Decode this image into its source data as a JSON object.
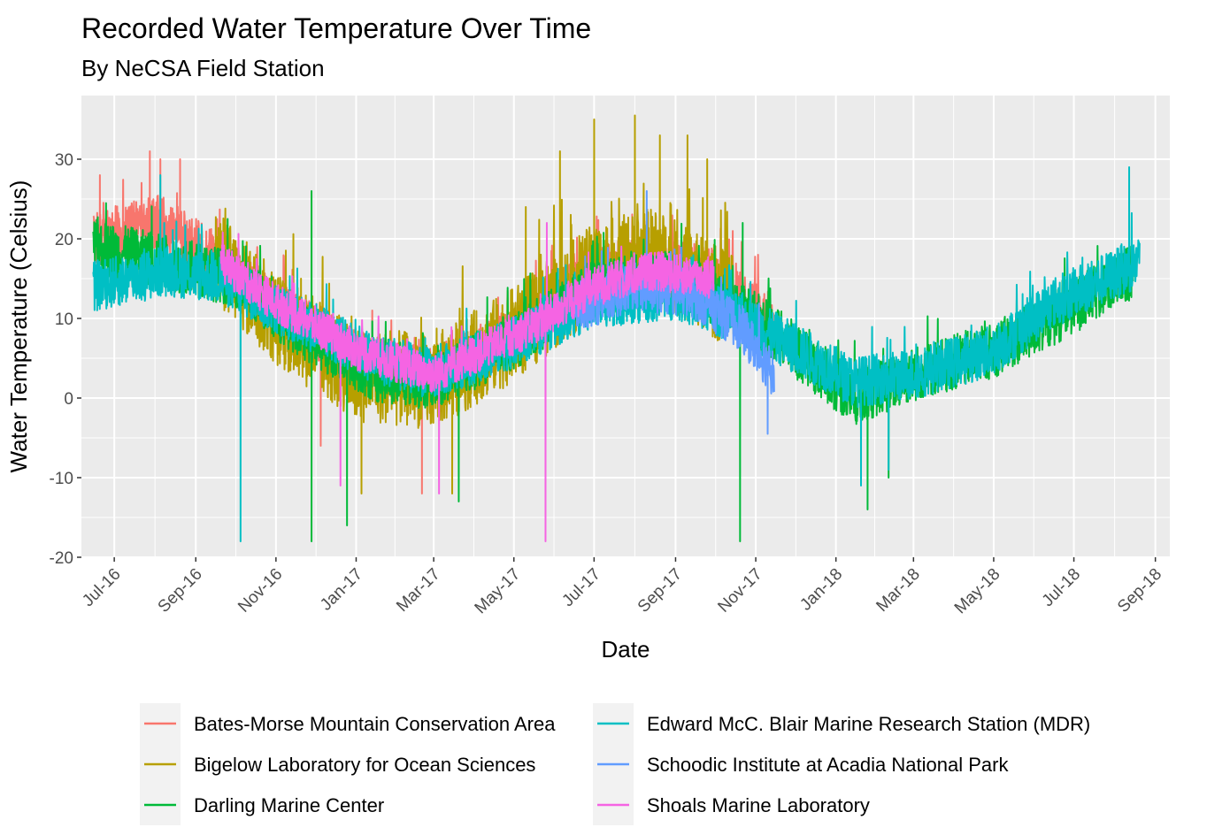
{
  "chart_data": {
    "type": "line",
    "title": "Recorded Water Temperature Over Time",
    "subtitle": "By NeCSA Field Station",
    "xlabel": "Date",
    "ylabel": "Water Temperature (Celsius)",
    "xlim": [
      "2016-06-06",
      "2018-09-12"
    ],
    "ylim": [
      -20,
      38
    ],
    "y_ticks": [
      -20,
      -10,
      0,
      10,
      20,
      30
    ],
    "x_ticks": [
      {
        "label": "Jul-16",
        "date": "2016-07-01"
      },
      {
        "label": "Sep-16",
        "date": "2016-09-01"
      },
      {
        "label": "Nov-16",
        "date": "2016-11-01"
      },
      {
        "label": "Jan-17",
        "date": "2017-01-01"
      },
      {
        "label": "Mar-17",
        "date": "2017-03-01"
      },
      {
        "label": "May-17",
        "date": "2017-05-01"
      },
      {
        "label": "Jul-17",
        "date": "2017-07-01"
      },
      {
        "label": "Sep-17",
        "date": "2017-09-01"
      },
      {
        "label": "Nov-17",
        "date": "2017-11-01"
      },
      {
        "label": "Jan-18",
        "date": "2018-01-01"
      },
      {
        "label": "Mar-18",
        "date": "2018-03-01"
      },
      {
        "label": "May-18",
        "date": "2018-05-01"
      },
      {
        "label": "Jul-18",
        "date": "2018-07-01"
      },
      {
        "label": "Sep-18",
        "date": "2018-09-01"
      }
    ],
    "grid": true,
    "legend_position": "bottom",
    "series": [
      {
        "name": "Bates-Morse Mountain Conservation Area",
        "color": "#F8766D",
        "start": "2016-06-15",
        "end": "2017-11-15",
        "baseline": [
          [
            "2016-06-15",
            20
          ],
          [
            "2016-08-05",
            22
          ],
          [
            "2016-09-20",
            17
          ],
          [
            "2016-11-15",
            10
          ],
          [
            "2017-01-15",
            4
          ],
          [
            "2017-03-01",
            3
          ],
          [
            "2017-05-01",
            8
          ],
          [
            "2017-07-01",
            16
          ],
          [
            "2017-09-01",
            17
          ],
          [
            "2017-10-15",
            14
          ],
          [
            "2017-11-15",
            9
          ]
        ],
        "amplitude": 3.5,
        "peaks": [
          [
            "2016-07-28",
            31
          ],
          [
            "2016-08-05",
            30
          ],
          [
            "2016-08-20",
            30
          ],
          [
            "2016-06-20",
            28
          ],
          [
            "2016-12-05",
            -6
          ],
          [
            "2017-02-20",
            -12
          ]
        ]
      },
      {
        "name": "Bigelow Laboratory for Ocean Sciences",
        "color": "#B79F00",
        "start": "2016-09-15",
        "end": "2017-10-15",
        "baseline": [
          [
            "2016-09-15",
            18
          ],
          [
            "2016-11-01",
            10
          ],
          [
            "2017-01-01",
            3
          ],
          [
            "2017-03-01",
            2
          ],
          [
            "2017-05-01",
            8
          ],
          [
            "2017-07-01",
            16
          ],
          [
            "2017-08-15",
            18
          ],
          [
            "2017-10-15",
            12
          ]
        ],
        "amplitude": 6,
        "peaks": [
          [
            "2016-11-20",
            15
          ],
          [
            "2017-01-05",
            -12
          ],
          [
            "2017-03-15",
            -12
          ],
          [
            "2017-05-10",
            24
          ],
          [
            "2017-06-05",
            31
          ],
          [
            "2017-07-01",
            35
          ],
          [
            "2017-08-01",
            35.5
          ],
          [
            "2017-08-20",
            33
          ],
          [
            "2017-09-10",
            33
          ],
          [
            "2017-09-25",
            30
          ]
        ]
      },
      {
        "name": "Darling Marine Center",
        "color": "#00BA38",
        "start": "2016-06-15",
        "end": "2018-08-15",
        "baseline": [
          [
            "2016-06-15",
            19
          ],
          [
            "2016-08-10",
            17
          ],
          [
            "2016-10-01",
            15
          ],
          [
            "2016-11-15",
            9
          ],
          [
            "2017-01-15",
            3
          ],
          [
            "2017-03-01",
            2
          ],
          [
            "2017-05-01",
            7
          ],
          [
            "2017-07-01",
            14
          ],
          [
            "2017-09-01",
            15
          ],
          [
            "2017-11-01",
            10
          ],
          [
            "2018-01-15",
            0
          ],
          [
            "2018-03-01",
            3
          ],
          [
            "2018-05-01",
            6
          ],
          [
            "2018-06-15",
            10
          ],
          [
            "2018-08-15",
            16
          ]
        ],
        "amplitude": 3.5,
        "peaks": [
          [
            "2016-11-28",
            26
          ],
          [
            "2016-11-28",
            -18
          ],
          [
            "2016-12-25",
            -16
          ],
          [
            "2017-03-20",
            -13
          ],
          [
            "2017-10-20",
            -18
          ],
          [
            "2017-10-22",
            22
          ],
          [
            "2018-01-25",
            -14
          ],
          [
            "2018-02-10",
            -10
          ]
        ]
      },
      {
        "name": "Edward McC. Blair Marine Research Station (MDR)",
        "color": "#00BFC4",
        "start": "2016-06-15",
        "end": "2018-08-20",
        "baseline": [
          [
            "2016-06-15",
            14
          ],
          [
            "2016-08-10",
            16
          ],
          [
            "2016-09-20",
            15
          ],
          [
            "2016-11-15",
            10
          ],
          [
            "2017-01-15",
            5
          ],
          [
            "2017-03-01",
            3
          ],
          [
            "2017-05-01",
            7
          ],
          [
            "2017-07-01",
            12
          ],
          [
            "2017-09-01",
            13
          ],
          [
            "2017-11-01",
            9
          ],
          [
            "2018-01-15",
            2
          ],
          [
            "2018-03-01",
            3
          ],
          [
            "2018-05-01",
            6
          ],
          [
            "2018-06-15",
            12
          ],
          [
            "2018-08-20",
            17
          ]
        ],
        "amplitude": 3.2,
        "peaks": [
          [
            "2016-10-05",
            -18
          ],
          [
            "2016-08-05",
            28
          ],
          [
            "2018-08-12",
            29
          ],
          [
            "2018-01-20",
            -11
          ],
          [
            "2018-02-10",
            -9
          ]
        ]
      },
      {
        "name": "Schoodic Institute at Acadia National Park",
        "color": "#619CFF",
        "start": "2017-06-15",
        "end": "2017-11-15",
        "baseline": [
          [
            "2017-06-15",
            11
          ],
          [
            "2017-08-01",
            14
          ],
          [
            "2017-09-15",
            13
          ],
          [
            "2017-10-20",
            9
          ],
          [
            "2017-11-15",
            3
          ]
        ],
        "amplitude": 3,
        "peaks": [
          [
            "2017-08-10",
            26
          ],
          [
            "2017-11-10",
            -4.5
          ]
        ]
      },
      {
        "name": "Shoals Marine Laboratory",
        "color": "#F564E3",
        "start": "2016-09-20",
        "end": "2017-09-30",
        "baseline": [
          [
            "2016-09-20",
            17
          ],
          [
            "2016-11-01",
            12
          ],
          [
            "2017-01-01",
            6
          ],
          [
            "2017-03-01",
            3
          ],
          [
            "2017-05-15",
            9
          ],
          [
            "2017-07-01",
            14
          ],
          [
            "2017-08-15",
            16
          ],
          [
            "2017-09-30",
            15
          ]
        ],
        "amplitude": 2.5,
        "peaks": [
          [
            "2017-05-25",
            -18
          ],
          [
            "2017-05-26",
            22
          ],
          [
            "2016-12-20",
            -11
          ],
          [
            "2017-03-05",
            -12
          ]
        ]
      }
    ]
  }
}
